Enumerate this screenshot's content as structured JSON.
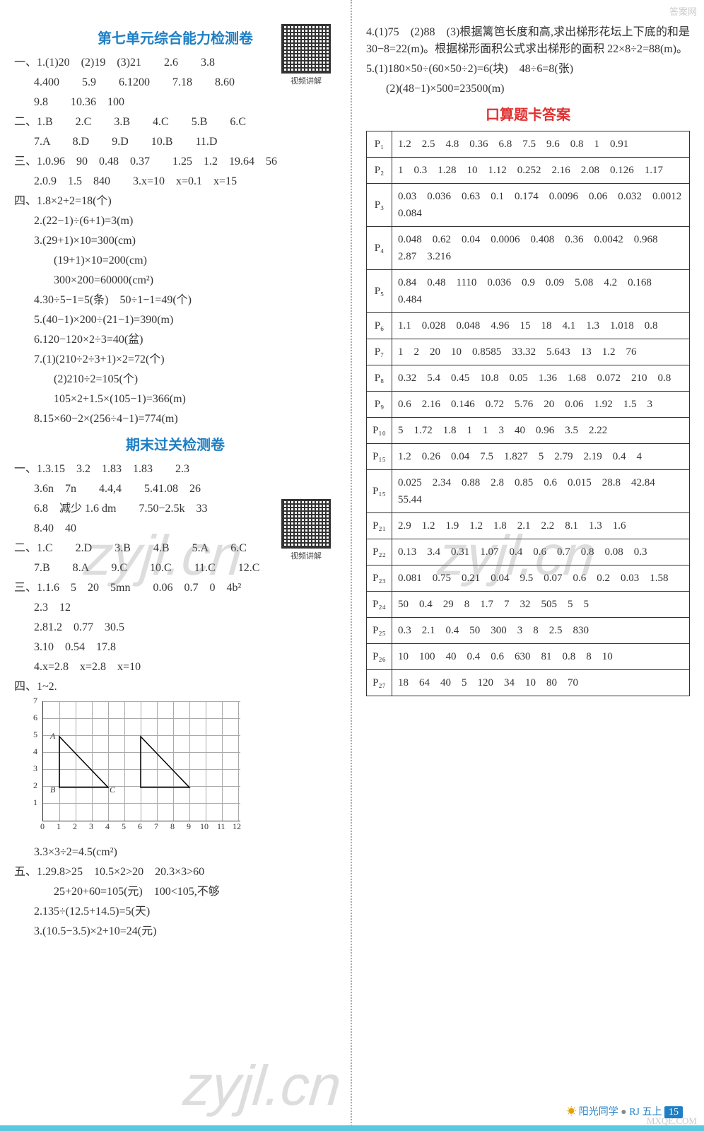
{
  "qr_label": "视频讲解",
  "left": {
    "title1": "第七单元综合能力检测卷",
    "sec1": {
      "yi": [
        "一、1.(1)20　(2)19　(3)21　　2.6　　3.8",
        "4.400　　5.9　　6.1200　　7.18　　8.60",
        "9.8　　10.36　100"
      ],
      "er": [
        "二、1.B　　2.C　　3.B　　4.C　　5.B　　6.C",
        "7.A　　8.D　　9.D　　10.B　　11.D"
      ],
      "san": [
        "三、1.0.96　90　0.48　0.37　　1.25　1.2　19.64　56",
        "2.0.9　1.5　840　　3.x=10　x=0.1　x=15"
      ],
      "si": [
        "四、1.8×2+2=18(个)",
        "2.(22−1)÷(6+1)=3(m)",
        "3.(29+1)×10=300(cm)",
        "(19+1)×10=200(cm)",
        "300×200=60000(cm²)",
        "4.30÷5−1=5(条)　50÷1−1=49(个)",
        "5.(40−1)×200÷(21−1)=390(m)",
        "6.120−120×2÷3=40(盆)",
        "7.(1)(210÷2÷3+1)×2=72(个)",
        "(2)210÷2=105(个)",
        "105×2+1.5×(105−1)=366(m)",
        "8.15×60−2×(256÷4−1)=774(m)"
      ]
    },
    "title2": "期末过关检测卷",
    "sec2": {
      "yi": [
        "一、1.3.15　3.2　1.83　1.83　　2.3",
        "3.6n　7n　　4.4,4　　5.41.08　26",
        "6.8　减少 1.6 dm　　7.50−2.5k　33",
        "8.40　40"
      ],
      "er": [
        "二、1.C　　2.D　　3.B　　4.B　　5.A　　6.C",
        "7.B　　8.A　　9.C　　10.C　　11.C　　12.C"
      ],
      "san": [
        "三、1.1.6　5　20　5mn　　0.06　0.7　0　4b²",
        "2.3　12",
        "2.81.2　0.77　30.5",
        "3.10　0.54　17.8",
        "4.x=2.8　x=2.8　x=10"
      ],
      "si_header": "四、1~2.",
      "si_after": [
        "3.3×3÷2=4.5(cm²)"
      ],
      "wu": [
        "五、1.29.8>25　10.5×2>20　20.3×3>60",
        "25+20+60=105(元)　100<105,不够",
        "2.135÷(12.5+14.5)=5(天)",
        "3.(10.5−3.5)×2+10=24(元)"
      ]
    }
  },
  "right": {
    "top": [
      "4.(1)75　(2)88　(3)根据篱笆长度和高,求出梯形花坛上下底的和是 30−8=22(m)。根据梯形面积公式求出梯形的面积 22×8÷2=88(m)。",
      "5.(1)180×50÷(60×50÷2)=6(块)　48÷6=8(张)",
      "(2)(48−1)×500=23500(m)"
    ],
    "kotitle": "口算题卡答案",
    "rows": [
      {
        "p": "P₁",
        "v": "1.2　2.5　4.8　0.36　6.8　7.5　9.6　0.8　1　0.91"
      },
      {
        "p": "P₂",
        "v": "1　0.3　1.28　10　1.12　0.252　2.16　2.08　0.126　1.17"
      },
      {
        "p": "P₃",
        "v": "0.03　0.036　0.63　0.1　0.174　0.0096　0.06　0.032　0.0012　0.084"
      },
      {
        "p": "P₄",
        "v": "0.048　0.62　0.04　0.0006　0.408　0.36　0.0042　0.968　2.87　3.216"
      },
      {
        "p": "P₅",
        "v": "0.84　0.48　1110　0.036　0.9　0.09　5.08　4.2　0.168　0.484"
      },
      {
        "p": "P₆",
        "v": "1.1　0.028　0.048　4.96　15　18　4.1　1.3　1.018　0.8"
      },
      {
        "p": "P₇",
        "v": "1　2　20　10　0.8585　33.32　5.643　13　1.2　76"
      },
      {
        "p": "P₈",
        "v": "0.32　5.4　0.45　10.8　0.05　1.36　1.68　0.072　210　0.8"
      },
      {
        "p": "P₉",
        "v": "0.6　2.16　0.146　0.72　5.76　20　0.06　1.92　1.5　3"
      },
      {
        "p": "P₁₀",
        "v": "5　1.72　1.8　1　1　3　40　0.96　3.5　2.22"
      },
      {
        "p": "P₁₅",
        "v": "1.2　0.26　0.04　7.5　1.827　5　2.79　2.19　0.4　4"
      },
      {
        "p": "P₁₅",
        "v": "0.025　2.34　0.88　2.8　0.85　0.6　0.015　28.8　42.84　55.44"
      },
      {
        "p": "P₂₁",
        "v": "2.9　1.2　1.9　1.2　1.8　2.1　2.2　8.1　1.3　1.6"
      },
      {
        "p": "P₂₂",
        "v": "0.13　3.4　0.31　1.07　0.4　0.6　0.7　0.8　0.08　0.3"
      },
      {
        "p": "P₂₃",
        "v": "0.081　0.75　0.21　0.04　9.5　0.07　0.6　0.2　0.03　1.58"
      },
      {
        "p": "P₂₄",
        "v": "50　0.4　29　8　1.7　7　32　505　5　5"
      },
      {
        "p": "P₂₅",
        "v": "0.3　2.1　0.4　50　300　3　8　2.5　830"
      },
      {
        "p": "P₂₆",
        "v": "10　100　40　0.4　0.6　630　81　0.8　8　10"
      },
      {
        "p": "P₂₇",
        "v": "18　64　40　5　120　34　10　80　70"
      }
    ]
  },
  "graph": {
    "ylabels": [
      "1",
      "2",
      "3",
      "4",
      "5",
      "6",
      "7"
    ],
    "xlabels": [
      "0",
      "1",
      "2",
      "3",
      "4",
      "5",
      "6",
      "7",
      "8",
      "9",
      "10",
      "11",
      "12"
    ],
    "pts": {
      "A": "A",
      "B": "B",
      "C": "C"
    }
  },
  "footer": {
    "brand": "阳光同学",
    "code": "RJ 五上",
    "page": "15"
  },
  "watermarks": {
    "w1": "zyjl.cn",
    "w2": "zyjl.cn",
    "corner": "答案网",
    "mxqe": "MXQE.COM"
  }
}
